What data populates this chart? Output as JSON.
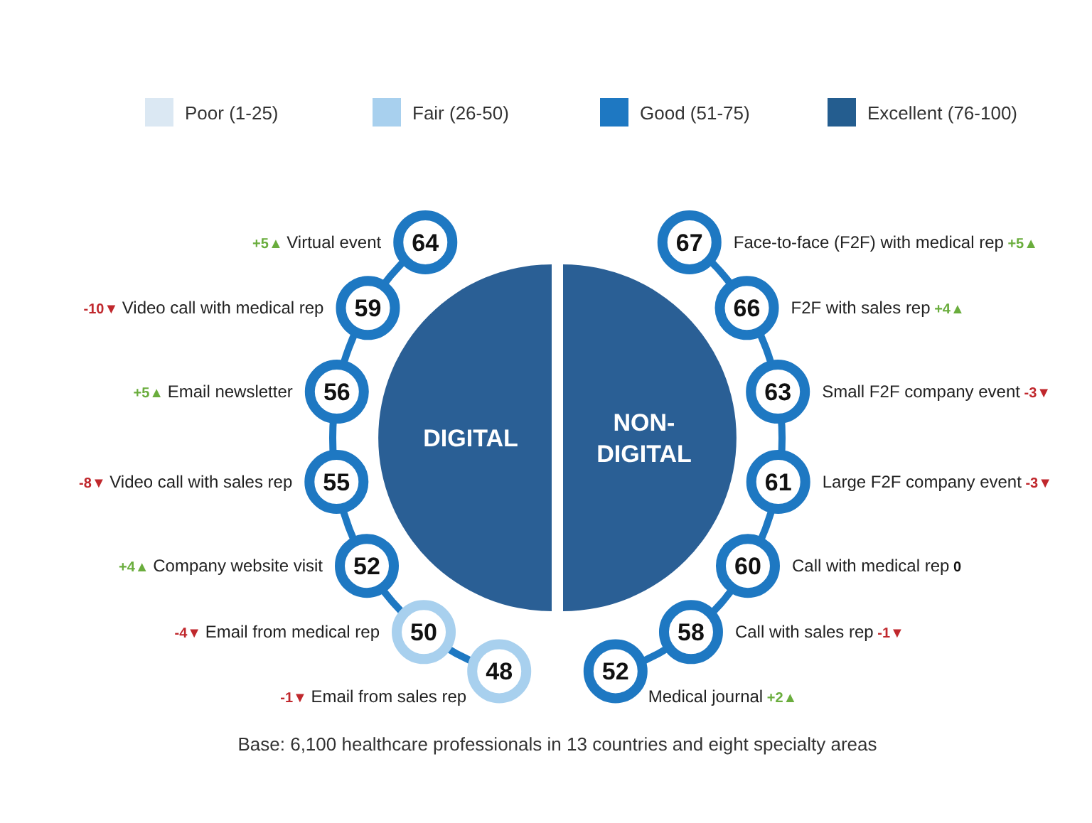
{
  "chart_data": {
    "type": "other",
    "categories": [
      "Virtual event",
      "Video call with medical rep",
      "Email newsletter",
      "Video call with sales rep",
      "Company website visit",
      "Email from medical rep",
      "Email from sales rep",
      "Face-to-face (F2F) with medical rep",
      "F2F with sales rep",
      "Small F2F company event",
      "Large F2F company event",
      "Call with medical rep",
      "Call with sales rep",
      "Medical journal"
    ],
    "series": [
      {
        "name": "Poor (1-25)",
        "color": "#dbe8f3",
        "values": [
          null,
          null,
          null,
          null,
          null,
          null,
          null,
          null,
          null,
          null,
          null,
          null,
          null,
          null
        ]
      },
      {
        "name": "Fair (26-50)",
        "color": "#a8d0ee",
        "values": [
          null,
          null,
          null,
          null,
          null,
          50,
          48,
          null,
          null,
          null,
          null,
          null,
          null,
          null
        ]
      },
      {
        "name": "Good (51-75)",
        "color": "#1e78c2",
        "values": [
          64,
          59,
          56,
          55,
          52,
          null,
          null,
          67,
          66,
          63,
          61,
          60,
          58,
          52
        ]
      },
      {
        "name": "Excellent (76-100)",
        "color": "#245d8f",
        "values": [
          null,
          null,
          null,
          null,
          null,
          null,
          null,
          null,
          null,
          null,
          null,
          null,
          null,
          null
        ]
      },
      {
        "values": [
          5,
          -10,
          5,
          -8,
          4,
          -4,
          -1,
          5,
          4,
          -3,
          -3,
          0,
          -1,
          2
        ],
        "value_labels": [
          "+5▲",
          "-10▼",
          "+5▲",
          "-8▼",
          "+4▲",
          "-4▼",
          "-1▼",
          "+5▲",
          "+4▲",
          "-3▼",
          "-3▼",
          "0",
          "-1▼",
          "+2▲"
        ],
        "colors": [
          "#6aad3d",
          "#c0282d",
          "#6aad3d",
          "#c0282d",
          "#6aad3d",
          "#c0282d",
          "#c0282d",
          "#6aad3d",
          "#6aad3d",
          "#c0282d",
          "#c0282d",
          "#111111",
          "#c0282d",
          "#6aad3d"
        ]
      }
    ],
    "legend": "top",
    "data_labels": true,
    "annotations": [
      "DIGITAL",
      "NON-DIGITAL",
      "Base: 6,100 healthcare professionals in 13 countries and eight specialty areas"
    ]
  }
}
